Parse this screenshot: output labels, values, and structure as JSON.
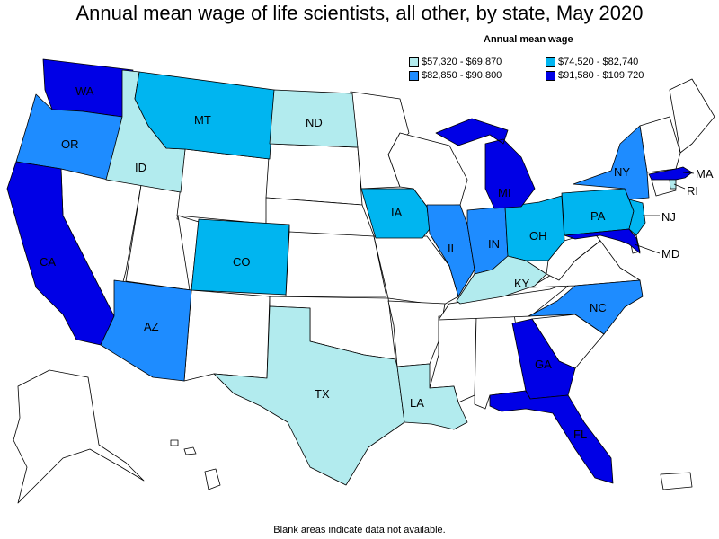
{
  "title": "Annual mean wage of life scientists, all other, by state, May 2020",
  "legend": {
    "title": "Annual mean wage",
    "items": [
      {
        "label": "$57,320 - $69,870",
        "color": "#b2ebee"
      },
      {
        "label": "$74,520 - $82,740",
        "color": "#00b5f0"
      },
      {
        "label": "$82,850 - $90,800",
        "color": "#1e8cff"
      },
      {
        "label": "$91,580 - $109,720",
        "color": "#0000e6"
      }
    ]
  },
  "footnote": "Blank areas indicate data not available.",
  "state_labels": {
    "WA": "WA",
    "OR": "OR",
    "CA": "CA",
    "ID": "ID",
    "MT": "MT",
    "ND": "ND",
    "CO": "CO",
    "AZ": "AZ",
    "TX": "TX",
    "IA": "IA",
    "IL": "IL",
    "IN": "IN",
    "OH": "OH",
    "MI": "MI",
    "KY": "KY",
    "NY": "NY",
    "PA": "PA",
    "NJ": "NJ",
    "MD": "MD",
    "NC": "NC",
    "GA": "GA",
    "FL": "FL",
    "LA": "LA",
    "MA": "MA",
    "RI": "RI"
  },
  "map_data": {
    "value_classes": {
      "WA": 3,
      "OR": 2,
      "CA": 3,
      "ID": 0,
      "MT": 1,
      "ND": 0,
      "CO": 1,
      "AZ": 2,
      "TX": 0,
      "IA": 1,
      "IL": 2,
      "IN": 2,
      "OH": 1,
      "MI": 3,
      "KY": 0,
      "NY": 2,
      "PA": 1,
      "NJ": 1,
      "MD": 3,
      "NC": 2,
      "GA": 3,
      "FL": 3,
      "LA": 0,
      "MA": 3,
      "RI": 0
    },
    "no_data_color": "#ffffff"
  }
}
